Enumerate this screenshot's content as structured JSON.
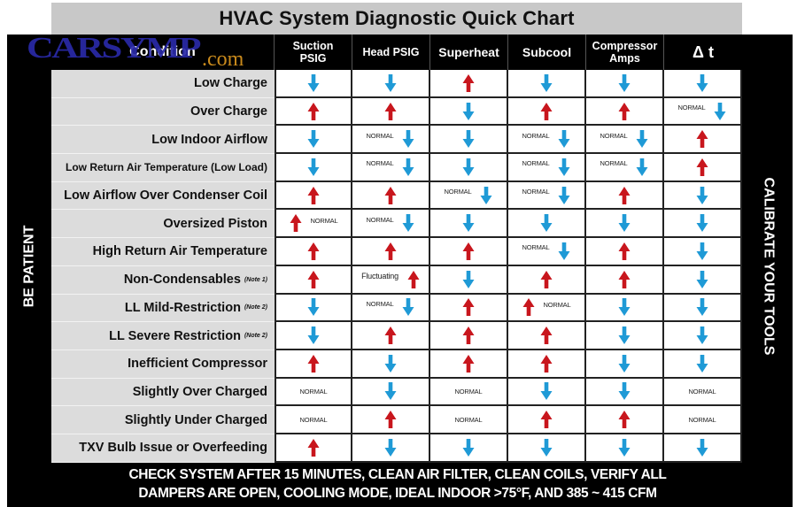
{
  "title": "HVAC System Diagnostic Quick Chart",
  "side_left": "BE PATIENT",
  "side_right": "CALIBRATE YOUR TOOLS",
  "watermark": {
    "main": "CARSYMP",
    "suffix": ".com"
  },
  "colors": {
    "up": "#c8161d",
    "down": "#1f9ad6",
    "frame": "#000000",
    "condition_bg": "#dcdcdc",
    "title_bg": "#c8c8c8"
  },
  "header": {
    "condition": "Condition",
    "columns": [
      "Suction PSIG",
      "Head PSIG",
      "Superheat",
      "Subcool",
      "Compressor Amps",
      "Δ t"
    ]
  },
  "rows": [
    {
      "condition": "Low Charge",
      "note": "",
      "cells": [
        {
          "dir": "down"
        },
        {
          "dir": "down"
        },
        {
          "dir": "up"
        },
        {
          "dir": "down"
        },
        {
          "dir": "down"
        },
        {
          "dir": "down"
        }
      ]
    },
    {
      "condition": "Over Charge",
      "note": "",
      "cells": [
        {
          "dir": "up"
        },
        {
          "dir": "up"
        },
        {
          "dir": "down"
        },
        {
          "dir": "up"
        },
        {
          "dir": "up"
        },
        {
          "dir": "down",
          "text": "NORMAL",
          "pos": "before"
        }
      ]
    },
    {
      "condition": "Low Indoor Airflow",
      "note": "",
      "cells": [
        {
          "dir": "down"
        },
        {
          "dir": "down",
          "text": "NORMAL",
          "pos": "before"
        },
        {
          "dir": "down"
        },
        {
          "dir": "down",
          "text": "NORMAL",
          "pos": "before"
        },
        {
          "dir": "down",
          "text": "NORMAL",
          "pos": "before"
        },
        {
          "dir": "up"
        }
      ]
    },
    {
      "condition": "Low Return Air Temperature (Low Load)",
      "note": "",
      "cells": [
        {
          "dir": "down"
        },
        {
          "dir": "down",
          "text": "NORMAL",
          "pos": "before"
        },
        {
          "dir": "down"
        },
        {
          "dir": "down",
          "text": "NORMAL",
          "pos": "before"
        },
        {
          "dir": "down",
          "text": "NORMAL",
          "pos": "before"
        },
        {
          "dir": "up"
        }
      ]
    },
    {
      "condition": "Low Airflow Over Condenser Coil",
      "note": "",
      "cells": [
        {
          "dir": "up"
        },
        {
          "dir": "up"
        },
        {
          "dir": "down",
          "text": "NORMAL",
          "pos": "before"
        },
        {
          "dir": "down",
          "text": "NORMAL",
          "pos": "before"
        },
        {
          "dir": "up"
        },
        {
          "dir": "down"
        }
      ]
    },
    {
      "condition": "Oversized Piston",
      "note": "",
      "cells": [
        {
          "dir": "up",
          "text": "NORMAL",
          "pos": "after"
        },
        {
          "dir": "down",
          "text": "NORMAL",
          "pos": "before"
        },
        {
          "dir": "down"
        },
        {
          "dir": "down"
        },
        {
          "dir": "down"
        },
        {
          "dir": "down"
        }
      ]
    },
    {
      "condition": "High Return Air Temperature",
      "note": "",
      "cells": [
        {
          "dir": "up"
        },
        {
          "dir": "up"
        },
        {
          "dir": "up"
        },
        {
          "dir": "down",
          "text": "NORMAL",
          "pos": "before"
        },
        {
          "dir": "up"
        },
        {
          "dir": "down"
        }
      ]
    },
    {
      "condition": "Non-Condensables",
      "note": "(Note 1)",
      "cells": [
        {
          "dir": "up"
        },
        {
          "dir": "up",
          "text": "Fluctuating",
          "pos": "before"
        },
        {
          "dir": "down"
        },
        {
          "dir": "up"
        },
        {
          "dir": "up"
        },
        {
          "dir": "down"
        }
      ]
    },
    {
      "condition": "LL Mild-Restriction",
      "note": "(Note 2)",
      "cells": [
        {
          "dir": "down"
        },
        {
          "dir": "down",
          "text": "NORMAL",
          "pos": "before"
        },
        {
          "dir": "up"
        },
        {
          "dir": "up",
          "text": "NORMAL",
          "pos": "after"
        },
        {
          "dir": "down"
        },
        {
          "dir": "down"
        }
      ]
    },
    {
      "condition": "LL Severe Restriction",
      "note": "(Note 2)",
      "cells": [
        {
          "dir": "down"
        },
        {
          "dir": "up"
        },
        {
          "dir": "up"
        },
        {
          "dir": "up"
        },
        {
          "dir": "down"
        },
        {
          "dir": "down"
        }
      ]
    },
    {
      "condition": "Inefficient Compressor",
      "note": "",
      "cells": [
        {
          "dir": "up"
        },
        {
          "dir": "down"
        },
        {
          "dir": "up"
        },
        {
          "dir": "up"
        },
        {
          "dir": "down"
        },
        {
          "dir": "down"
        }
      ]
    },
    {
      "condition": "Slightly Over Charged",
      "note": "",
      "cells": [
        {
          "text": "NORMAL"
        },
        {
          "dir": "down"
        },
        {
          "text": "NORMAL"
        },
        {
          "dir": "down"
        },
        {
          "dir": "down"
        },
        {
          "text": "NORMAL"
        }
      ]
    },
    {
      "condition": "Slightly Under Charged",
      "note": "",
      "cells": [
        {
          "text": "NORMAL"
        },
        {
          "dir": "up"
        },
        {
          "text": "NORMAL"
        },
        {
          "dir": "up"
        },
        {
          "dir": "up"
        },
        {
          "text": "NORMAL"
        }
      ]
    },
    {
      "condition": "TXV Bulb Issue or Overfeeding",
      "note": "",
      "cells": [
        {
          "dir": "up"
        },
        {
          "dir": "down"
        },
        {
          "dir": "down"
        },
        {
          "dir": "down"
        },
        {
          "dir": "down"
        },
        {
          "dir": "down"
        }
      ]
    }
  ],
  "footer": {
    "line1": "CHECK SYSTEM AFTER 15 MINUTES, CLEAN AIR FILTER, CLEAN COILS, VERIFY ALL",
    "line2": "DAMPERS ARE OPEN, COOLING MODE, IDEAL INDOOR >75°F, AND 385 ~ 415 CFM"
  }
}
